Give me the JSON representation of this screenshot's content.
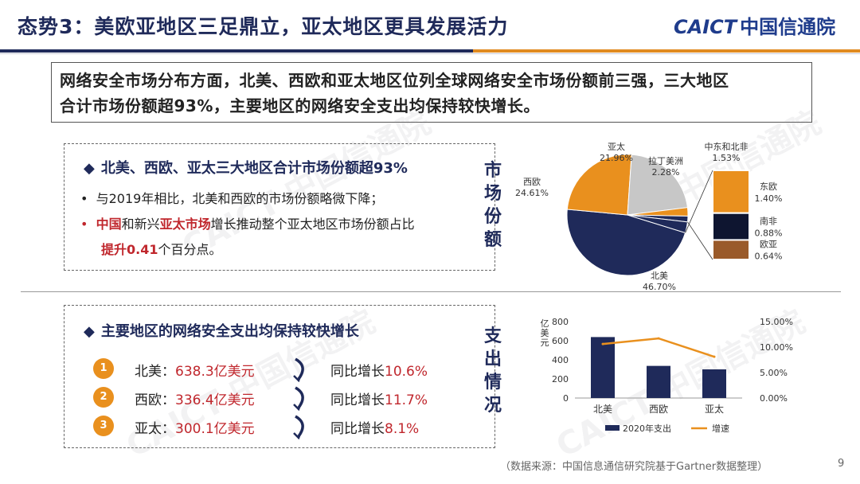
{
  "header": {
    "title": "态势3：美欧亚地区三足鼎立，亚太地区更具发展活力",
    "logo_en": "CAICT",
    "logo_cn": "中国信通院"
  },
  "intro": {
    "line1": "网络安全市场分布方面，北美、西欧和亚太地区位列全球网络安全市场份额前三强，三大地区",
    "line2": "合计市场份额超93%，主要地区的网络安全支出均保持较快增长。"
  },
  "share_panel": {
    "heading": "北美、西欧、亚太三大地区合计市场份额超93%",
    "bullet1": "与2019年相比，北美和西欧的市场份额略微下降；",
    "b2_china": "中国",
    "b2_t1": "和新兴",
    "b2_apac": "亚太市场",
    "b2_t2": "增长推动整个亚太地区市场份额占比",
    "b2_up": "提升0.41",
    "b2_t3": "个百分点。",
    "side_label": [
      "市",
      "场",
      "份",
      "额"
    ]
  },
  "spend_panel": {
    "heading": "主要地区的网络安全支出均保持较快增长",
    "rows": [
      {
        "num": "1",
        "region": "北美：",
        "amount": "638.3亿美元",
        "growth_label": "同比增长",
        "growth": "10.6%"
      },
      {
        "num": "2",
        "region": "西欧：",
        "amount": "336.4亿美元",
        "growth_label": "同比增长",
        "growth": "11.7%"
      },
      {
        "num": "3",
        "region": "亚太：",
        "amount": "300.1亿美元",
        "growth_label": "同比增长",
        "growth": "8.1%"
      }
    ],
    "side_label": [
      "支",
      "出",
      "情",
      "况"
    ]
  },
  "chart_data": [
    {
      "type": "pie",
      "slices": [
        {
          "label": "北美",
          "value": 46.7,
          "text": "46.70%",
          "color": "#1f2a5a"
        },
        {
          "label": "西欧",
          "value": 24.61,
          "text": "24.61%",
          "color": "#e9901e"
        },
        {
          "label": "亚太",
          "value": 21.96,
          "text": "21.96%",
          "color": "#c7c7c7"
        },
        {
          "label": "拉丁美洲",
          "value": 2.28,
          "text": "2.28%",
          "color": "#e9901e"
        },
        {
          "label": "中东和北非",
          "value": 1.53,
          "text": "1.53%",
          "color": "#1f2a5a"
        },
        {
          "label": "东欧",
          "value": 1.4,
          "text": "1.40%",
          "color": "#e9901e"
        },
        {
          "label": "南非",
          "value": 0.88,
          "text": "0.88%",
          "color": "#0e1530"
        },
        {
          "label": "欧亚",
          "value": 0.64,
          "text": "0.64%",
          "color": "#9a5a2a"
        }
      ],
      "breakout": [
        "东欧",
        "南非",
        "欧亚"
      ]
    },
    {
      "type": "bar",
      "categories": [
        "北美",
        "西欧",
        "亚太"
      ],
      "series": [
        {
          "name": "2020年支出",
          "type": "bar",
          "values": [
            638.3,
            336.4,
            300.1
          ],
          "color": "#1f2a5a"
        },
        {
          "name": "增速",
          "type": "line",
          "values": [
            10.6,
            11.7,
            8.1
          ],
          "color": "#e9901e"
        }
      ],
      "ylabel": "亿美元",
      "ylim": [
        0,
        800
      ],
      "yticks": [
        "0",
        "200",
        "400",
        "600",
        "800"
      ],
      "y2lim": [
        0,
        15
      ],
      "y2ticks": [
        "0.00%",
        "5.00%",
        "10.00%",
        "15.00%"
      ]
    }
  ],
  "footer": {
    "source": "（数据来源：中国信息通信研究院基于Gartner数据整理）",
    "page": "9"
  },
  "colors": {
    "navy": "#1f2a5a",
    "orange": "#e9901e",
    "red": "#c0272d"
  }
}
